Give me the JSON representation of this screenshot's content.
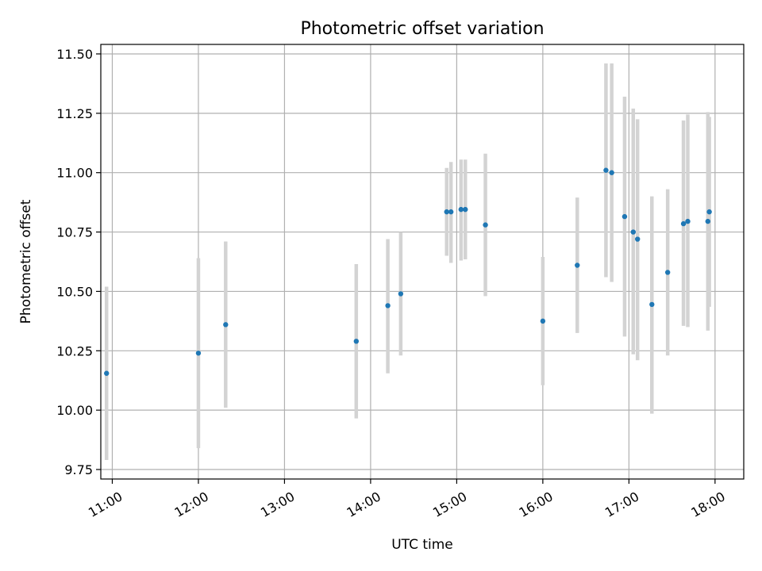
{
  "chart_data": {
    "type": "scatter",
    "title": "Photometric offset variation",
    "xlabel": "UTC time",
    "ylabel": "Photometric offset",
    "xlim": [
      "10:52",
      "18:20"
    ],
    "ylim": [
      9.71,
      11.54
    ],
    "grid": true,
    "x_ticks": [
      "11:00",
      "12:00",
      "13:00",
      "14:00",
      "15:00",
      "16:00",
      "17:00",
      "18:00"
    ],
    "y_ticks": [
      "9.75",
      "10.00",
      "10.25",
      "10.50",
      "10.75",
      "11.00",
      "11.25",
      "11.50"
    ],
    "colors": {
      "marker": "#1f77b4",
      "error_bar": "#d3d3d3",
      "grid": "#b0b0b0"
    },
    "series": [
      {
        "points": [
          {
            "x": "10:56",
            "y": 10.155,
            "low": 9.79,
            "high": 10.52
          },
          {
            "x": "12:00",
            "y": 10.24,
            "low": 9.84,
            "high": 10.64
          },
          {
            "x": "12:19",
            "y": 10.36,
            "low": 10.01,
            "high": 10.71
          },
          {
            "x": "13:50",
            "y": 10.29,
            "low": 9.965,
            "high": 10.615
          },
          {
            "x": "14:12",
            "y": 10.44,
            "low": 10.155,
            "high": 10.72
          },
          {
            "x": "14:21",
            "y": 10.49,
            "low": 10.23,
            "high": 10.75
          },
          {
            "x": "14:53",
            "y": 10.835,
            "low": 10.65,
            "high": 11.02
          },
          {
            "x": "14:56",
            "y": 10.835,
            "low": 10.62,
            "high": 11.045
          },
          {
            "x": "15:03",
            "y": 10.845,
            "low": 10.63,
            "high": 11.055
          },
          {
            "x": "15:06",
            "y": 10.845,
            "low": 10.635,
            "high": 11.055
          },
          {
            "x": "15:20",
            "y": 10.78,
            "low": 10.48,
            "high": 11.08
          },
          {
            "x": "16:00",
            "y": 10.375,
            "low": 10.105,
            "high": 10.645
          },
          {
            "x": "16:24",
            "y": 10.61,
            "low": 10.325,
            "high": 10.895
          },
          {
            "x": "16:44",
            "y": 11.01,
            "low": 10.56,
            "high": 11.46
          },
          {
            "x": "16:48",
            "y": 11.0,
            "low": 10.54,
            "high": 11.46
          },
          {
            "x": "16:57",
            "y": 10.815,
            "low": 10.31,
            "high": 11.32
          },
          {
            "x": "17:03",
            "y": 10.75,
            "low": 10.235,
            "high": 11.27
          },
          {
            "x": "17:06",
            "y": 10.72,
            "low": 10.21,
            "high": 11.225
          },
          {
            "x": "17:16",
            "y": 10.445,
            "low": 9.985,
            "high": 10.9
          },
          {
            "x": "17:27",
            "y": 10.58,
            "low": 10.23,
            "high": 10.93
          },
          {
            "x": "17:38",
            "y": 10.785,
            "low": 10.355,
            "high": 11.22
          },
          {
            "x": "17:41",
            "y": 10.795,
            "low": 10.35,
            "high": 11.245
          },
          {
            "x": "17:55",
            "y": 10.795,
            "low": 10.335,
            "high": 11.255
          },
          {
            "x": "17:56",
            "y": 10.835,
            "low": 10.435,
            "high": 11.235
          }
        ]
      }
    ]
  }
}
